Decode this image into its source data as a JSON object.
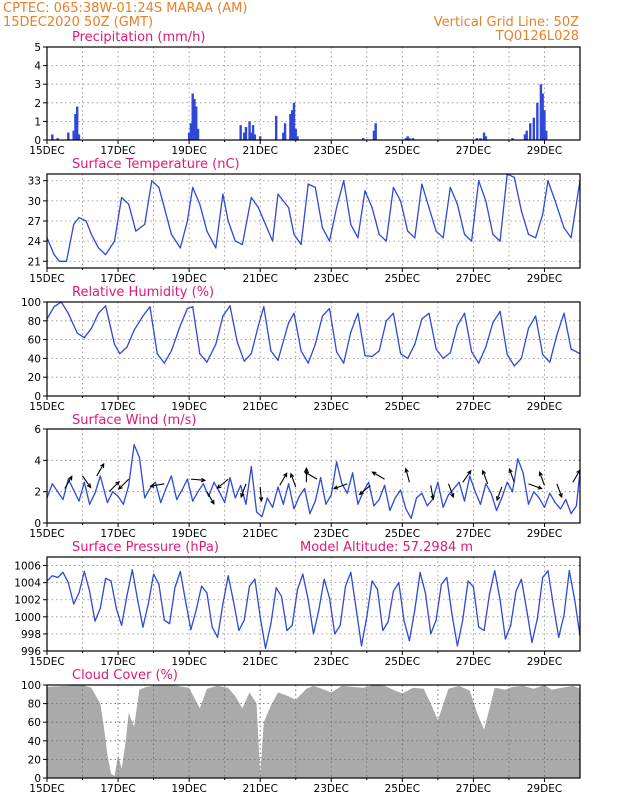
{
  "header": {
    "station": "CPTEC:   065:38W-01:24S   MARAA (AM)",
    "run": "15DEC2020 50Z (GMT)",
    "grid_note": "Vertical Grid Line: 50Z",
    "code": "TQ0126L028"
  },
  "colors": {
    "header_text": "#e6812a",
    "panel_title": "#e0187a",
    "line": "#3048d8",
    "cloud": "#aaaaaa",
    "wind_arrow": "#000000"
  },
  "x_axis": {
    "labels": [
      "15DEC",
      "17DEC",
      "19DEC",
      "21DEC",
      "23DEC",
      "25DEC",
      "27DEC",
      "29DEC"
    ],
    "label_days": [
      0,
      2,
      4,
      6,
      8,
      10,
      12,
      14
    ],
    "range_days": [
      0,
      15
    ]
  },
  "chart_data": [
    {
      "id": "precip",
      "type": "bar",
      "title": "Precipitation (mm/h)",
      "ylim": [
        0,
        5
      ],
      "yticks": [
        0,
        1,
        2,
        3,
        4,
        5
      ],
      "grid": true,
      "t": [
        0.15,
        0.3,
        0.6,
        0.75,
        0.8,
        0.85,
        0.9,
        4.0,
        4.05,
        4.1,
        4.15,
        4.2,
        4.25,
        5.45,
        5.55,
        5.6,
        5.7,
        5.75,
        5.8,
        5.85,
        6.0,
        6.45,
        6.65,
        6.7,
        6.85,
        6.9,
        6.95,
        7.0,
        7.05,
        8.9,
        9.2,
        9.25,
        10.1,
        10.15,
        10.2,
        10.3,
        12.1,
        12.2,
        12.3,
        12.35,
        13.1,
        13.45,
        13.5,
        13.6,
        13.7,
        13.8,
        13.9,
        13.95,
        14.0,
        14.05
      ],
      "values": [
        0.3,
        0.1,
        0.4,
        0.5,
        1.4,
        1.8,
        0.3,
        0.4,
        0.9,
        2.5,
        2.2,
        1.8,
        0.6,
        0.8,
        0.4,
        0.7,
        1.0,
        0.4,
        0.8,
        0.3,
        0.2,
        1.3,
        0.4,
        0.9,
        1.4,
        1.6,
        2.0,
        0.6,
        0.2,
        0.1,
        0.5,
        0.9,
        0.1,
        0.2,
        0.1,
        0.1,
        0.1,
        0.1,
        0.4,
        0.2,
        0.1,
        0.3,
        0.5,
        0.9,
        1.2,
        2.0,
        3.0,
        2.5,
        1.6,
        0.5
      ]
    },
    {
      "id": "temp",
      "type": "line",
      "title": "Surface Temperature (nC)",
      "ylim": [
        20,
        34
      ],
      "yticks": [
        21,
        24,
        27,
        30,
        33
      ],
      "grid": true,
      "t": [
        0,
        0.2,
        0.35,
        0.55,
        0.75,
        0.9,
        1.1,
        1.25,
        1.45,
        1.65,
        1.9,
        2.1,
        2.3,
        2.5,
        2.75,
        2.95,
        3.15,
        3.3,
        3.5,
        3.75,
        3.95,
        4.1,
        4.3,
        4.5,
        4.75,
        4.95,
        5.1,
        5.3,
        5.5,
        5.75,
        5.95,
        6.15,
        6.35,
        6.5,
        6.8,
        6.95,
        7.15,
        7.35,
        7.55,
        7.75,
        7.95,
        8.15,
        8.35,
        8.55,
        8.75,
        8.95,
        9.15,
        9.35,
        9.55,
        9.75,
        9.95,
        10.15,
        10.35,
        10.55,
        10.75,
        10.95,
        11.15,
        11.35,
        11.55,
        11.75,
        11.95,
        12.15,
        12.35,
        12.55,
        12.75,
        12.95,
        13.15,
        13.35,
        13.55,
        13.75,
        13.95,
        14.1,
        14.3,
        14.55,
        14.75,
        15.0
      ],
      "values": [
        24.5,
        22.0,
        21.0,
        21.0,
        26.5,
        27.5,
        27.0,
        25.0,
        23.0,
        22.0,
        24.0,
        30.5,
        29.5,
        25.5,
        26.5,
        33.0,
        32.0,
        29.0,
        25.0,
        23.0,
        27.0,
        32.0,
        29.5,
        25.5,
        23.0,
        31.0,
        27.0,
        24.0,
        23.5,
        30.5,
        29.0,
        26.5,
        24.0,
        31.0,
        29.0,
        25.0,
        23.5,
        32.5,
        32.0,
        26.0,
        24.0,
        29.0,
        33.0,
        26.5,
        24.5,
        31.5,
        29.0,
        25.0,
        24.0,
        32.0,
        30.0,
        25.5,
        24.5,
        32.5,
        29.0,
        25.5,
        24.5,
        32.0,
        29.5,
        25.0,
        24.0,
        33.0,
        30.0,
        25.0,
        24.0,
        34.0,
        33.5,
        28.5,
        25.0,
        24.5,
        28.0,
        33.0,
        30.0,
        26.0,
        24.5,
        33.0
      ]
    },
    {
      "id": "rh",
      "type": "line",
      "title": "Relative Humidity (%)",
      "ylim": [
        0,
        100
      ],
      "yticks": [
        0,
        20,
        40,
        60,
        80,
        100
      ],
      "grid": true,
      "t": [
        0,
        0.2,
        0.4,
        0.6,
        0.85,
        1.05,
        1.25,
        1.45,
        1.65,
        1.9,
        2.05,
        2.25,
        2.45,
        2.7,
        2.9,
        3.1,
        3.3,
        3.5,
        3.75,
        3.95,
        4.1,
        4.3,
        4.5,
        4.75,
        4.95,
        5.15,
        5.35,
        5.55,
        5.75,
        5.95,
        6.1,
        6.3,
        6.5,
        6.8,
        6.95,
        7.15,
        7.35,
        7.55,
        7.75,
        7.95,
        8.15,
        8.35,
        8.55,
        8.75,
        8.95,
        9.15,
        9.35,
        9.55,
        9.75,
        9.95,
        10.15,
        10.35,
        10.55,
        10.75,
        10.95,
        11.15,
        11.35,
        11.55,
        11.75,
        11.95,
        12.15,
        12.35,
        12.55,
        12.75,
        12.95,
        13.15,
        13.35,
        13.55,
        13.75,
        13.95,
        14.15,
        14.35,
        14.55,
        14.75,
        15.0
      ],
      "values": [
        82,
        95,
        100,
        88,
        67,
        62,
        72,
        88,
        96,
        55,
        45,
        52,
        70,
        85,
        95,
        45,
        35,
        48,
        75,
        93,
        95,
        45,
        36,
        55,
        85,
        96,
        58,
        37,
        45,
        75,
        95,
        48,
        38,
        78,
        88,
        48,
        35,
        55,
        85,
        93,
        47,
        35,
        68,
        88,
        43,
        42,
        48,
        80,
        88,
        45,
        40,
        55,
        82,
        88,
        50,
        40,
        46,
        75,
        88,
        47,
        35,
        52,
        78,
        90,
        44,
        32,
        40,
        72,
        85,
        44,
        36,
        65,
        88,
        50,
        45
      ]
    },
    {
      "id": "wind",
      "type": "line",
      "title": "Surface Wind (m/s)",
      "ylim": [
        0,
        6
      ],
      "yticks": [
        0,
        2,
        4,
        6
      ],
      "grid": true,
      "t": [
        0,
        0.15,
        0.3,
        0.45,
        0.6,
        0.75,
        0.9,
        1.05,
        1.2,
        1.35,
        1.5,
        1.7,
        1.85,
        2.0,
        2.15,
        2.3,
        2.45,
        2.6,
        2.75,
        2.9,
        3.05,
        3.2,
        3.35,
        3.5,
        3.65,
        3.8,
        3.95,
        4.1,
        4.25,
        4.4,
        4.55,
        4.7,
        4.85,
        5.0,
        5.15,
        5.3,
        5.45,
        5.6,
        5.75,
        5.9,
        6.05,
        6.2,
        6.35,
        6.5,
        6.65,
        6.8,
        6.95,
        7.1,
        7.25,
        7.4,
        7.55,
        7.7,
        7.85,
        8.0,
        8.15,
        8.3,
        8.45,
        8.6,
        8.75,
        8.9,
        9.05,
        9.2,
        9.35,
        9.5,
        9.65,
        9.8,
        9.95,
        10.1,
        10.25,
        10.4,
        10.55,
        10.7,
        10.85,
        11.0,
        11.15,
        11.3,
        11.45,
        11.6,
        11.75,
        11.9,
        12.05,
        12.2,
        12.35,
        12.5,
        12.65,
        12.8,
        12.95,
        13.1,
        13.25,
        13.4,
        13.55,
        13.7,
        13.85,
        14.0,
        14.15,
        14.3,
        14.45,
        14.6,
        14.75,
        14.9,
        15.0
      ],
      "values": [
        1.6,
        2.5,
        2.0,
        1.5,
        2.8,
        2.1,
        1.4,
        2.6,
        1.2,
        1.9,
        3.0,
        1.3,
        2.0,
        1.7,
        1.2,
        2.4,
        5.0,
        4.2,
        1.6,
        2.2,
        2.6,
        1.3,
        2.2,
        3.0,
        1.5,
        2.1,
        2.8,
        1.4,
        2.0,
        2.5,
        1.7,
        2.6,
        2.0,
        1.3,
        2.9,
        1.6,
        2.4,
        1.2,
        3.6,
        0.7,
        0.4,
        1.6,
        1.0,
        2.3,
        1.2,
        2.5,
        0.9,
        1.7,
        2.2,
        0.6,
        1.4,
        2.9,
        1.2,
        1.8,
        3.9,
        2.5,
        1.9,
        3.2,
        1.2,
        2.0,
        2.6,
        1.1,
        1.5,
        2.4,
        0.8,
        1.6,
        2.1,
        0.9,
        0.3,
        1.6,
        1.9,
        1.1,
        1.5,
        2.6,
        1.0,
        1.8,
        2.2,
        2.6,
        1.4,
        3.0,
        2.0,
        1.2,
        2.5,
        1.9,
        0.8,
        1.6,
        2.6,
        2.0,
        4.1,
        3.2,
        1.2,
        2.0,
        1.6,
        1.0,
        1.9,
        1.3,
        0.9,
        1.5,
        0.6,
        1.1,
        3.3
      ]
    },
    {
      "id": "wind_vectors",
      "type": "vector",
      "t": [
        0.5,
        1.0,
        1.4,
        1.75,
        2.3,
        3.3,
        4.05,
        4.5,
        5.1,
        5.6,
        6.0,
        6.55,
        7.0,
        7.3,
        7.6,
        8.45,
        9.1,
        9.5,
        10.2,
        10.8,
        11.3,
        11.7,
        12.4,
        12.8,
        13.15,
        13.55,
        14.0,
        14.35,
        14.8
      ],
      "speed": [
        2.2,
        3.0,
        3.0,
        2.0,
        2.8,
        2.5,
        2.8,
        2.0,
        2.8,
        2.5,
        2.3,
        2.4,
        2.3,
        2.6,
        2.8,
        2.5,
        2.4,
        2.8,
        2.6,
        2.4,
        2.5,
        2.6,
        2.5,
        2.3,
        2.6,
        2.5,
        2.4,
        2.5,
        2.6
      ],
      "dir_deg": [
        30,
        145,
        30,
        45,
        225,
        260,
        95,
        150,
        230,
        200,
        175,
        30,
        340,
        0,
        300,
        250,
        230,
        300,
        345,
        170,
        160,
        35,
        340,
        200,
        340,
        110,
        340,
        160,
        30
      ]
    },
    {
      "id": "pressure",
      "type": "line",
      "title": "Surface Pressure (hPa)",
      "annotation": "Model Altitude: 57.2984 m",
      "ylim": [
        996,
        1007
      ],
      "yticks": [
        996,
        998,
        1000,
        1002,
        1004,
        1006
      ],
      "grid": true,
      "t": [
        0,
        0.15,
        0.3,
        0.45,
        0.6,
        0.75,
        0.9,
        1.05,
        1.2,
        1.35,
        1.5,
        1.65,
        1.8,
        1.95,
        2.1,
        2.25,
        2.4,
        2.55,
        2.7,
        2.85,
        3.0,
        3.15,
        3.3,
        3.45,
        3.6,
        3.75,
        3.9,
        4.05,
        4.2,
        4.35,
        4.5,
        4.65,
        4.8,
        4.95,
        5.1,
        5.25,
        5.4,
        5.55,
        5.7,
        5.85,
        6.0,
        6.15,
        6.3,
        6.45,
        6.6,
        6.75,
        6.9,
        7.05,
        7.2,
        7.35,
        7.5,
        7.65,
        7.8,
        7.95,
        8.1,
        8.25,
        8.4,
        8.55,
        8.7,
        8.85,
        9.0,
        9.15,
        9.3,
        9.45,
        9.6,
        9.75,
        9.9,
        10.05,
        10.2,
        10.35,
        10.5,
        10.65,
        10.8,
        10.95,
        11.1,
        11.25,
        11.4,
        11.55,
        11.7,
        11.85,
        12.0,
        12.15,
        12.3,
        12.45,
        12.6,
        12.75,
        12.9,
        13.05,
        13.2,
        13.35,
        13.5,
        13.65,
        13.8,
        13.95,
        14.1,
        14.25,
        14.4,
        14.55,
        14.7,
        14.85,
        15.0
      ],
      "values": [
        1004.2,
        1004.8,
        1004.6,
        1005.2,
        1004.0,
        1001.5,
        1002.8,
        1005.3,
        1003.0,
        999.5,
        1001.0,
        1004.5,
        1004.2,
        1001.0,
        999.0,
        1002.5,
        1005.5,
        1002.0,
        998.8,
        1001.5,
        1005.0,
        1003.8,
        999.6,
        999.2,
        1003.4,
        1005.3,
        1001.8,
        998.5,
        1000.8,
        1003.6,
        1002.8,
        998.8,
        997.6,
        1001.5,
        1004.8,
        1001.8,
        998.4,
        999.6,
        1003.6,
        1004.4,
        1000.0,
        996.3,
        999.2,
        1003.4,
        1002.4,
        998.4,
        999.0,
        1003.2,
        1005.0,
        1002.0,
        998.0,
        1000.8,
        1004.4,
        1002.2,
        998.0,
        999.0,
        1003.6,
        1005.2,
        1001.0,
        996.6,
        1000.0,
        1004.2,
        1003.2,
        998.4,
        999.4,
        1003.0,
        1004.0,
        999.5,
        997.2,
        1000.8,
        1005.2,
        1002.8,
        998.0,
        999.6,
        1003.8,
        1004.6,
        1000.2,
        996.6,
        999.6,
        1004.2,
        1003.5,
        998.8,
        998.4,
        1002.6,
        1005.4,
        1002.0,
        997.4,
        999.0,
        1003.0,
        1004.4,
        1000.8,
        997.0,
        999.8,
        1004.6,
        1005.4,
        1001.4,
        997.6,
        1000.2,
        1005.4,
        1002.0,
        997.8
      ]
    },
    {
      "id": "cloud",
      "type": "area",
      "title": "Cloud Cover (%)",
      "ylim": [
        0,
        100
      ],
      "yticks": [
        0,
        20,
        40,
        60,
        80,
        100
      ],
      "grid": true,
      "t": [
        0,
        0.5,
        1.0,
        1.25,
        1.5,
        1.6,
        1.7,
        1.8,
        1.9,
        2.0,
        2.1,
        2.2,
        2.3,
        2.45,
        2.6,
        2.8,
        3.0,
        3.5,
        4.0,
        4.3,
        4.5,
        4.8,
        5.1,
        5.3,
        5.5,
        5.7,
        5.9,
        6.0,
        6.1,
        6.3,
        6.5,
        6.8,
        7.0,
        7.3,
        7.5,
        7.8,
        8.0,
        8.3,
        8.6,
        8.9,
        9.2,
        9.5,
        9.8,
        10.0,
        10.3,
        10.6,
        10.8,
        11.0,
        11.3,
        11.6,
        11.9,
        12.1,
        12.3,
        12.6,
        12.9,
        13.1,
        13.4,
        13.7,
        14.0,
        14.2,
        14.5,
        14.8,
        15.0
      ],
      "values": [
        98,
        99,
        100,
        97,
        80,
        55,
        25,
        5,
        2,
        25,
        10,
        35,
        70,
        55,
        95,
        98,
        99,
        100,
        97,
        75,
        96,
        99,
        97,
        88,
        75,
        92,
        80,
        4,
        60,
        78,
        92,
        88,
        84,
        96,
        99,
        95,
        92,
        99,
        98,
        97,
        100,
        99,
        94,
        91,
        97,
        96,
        80,
        62,
        96,
        99,
        94,
        70,
        52,
        97,
        95,
        98,
        99,
        96,
        100,
        95,
        97,
        99,
        96
      ]
    }
  ]
}
